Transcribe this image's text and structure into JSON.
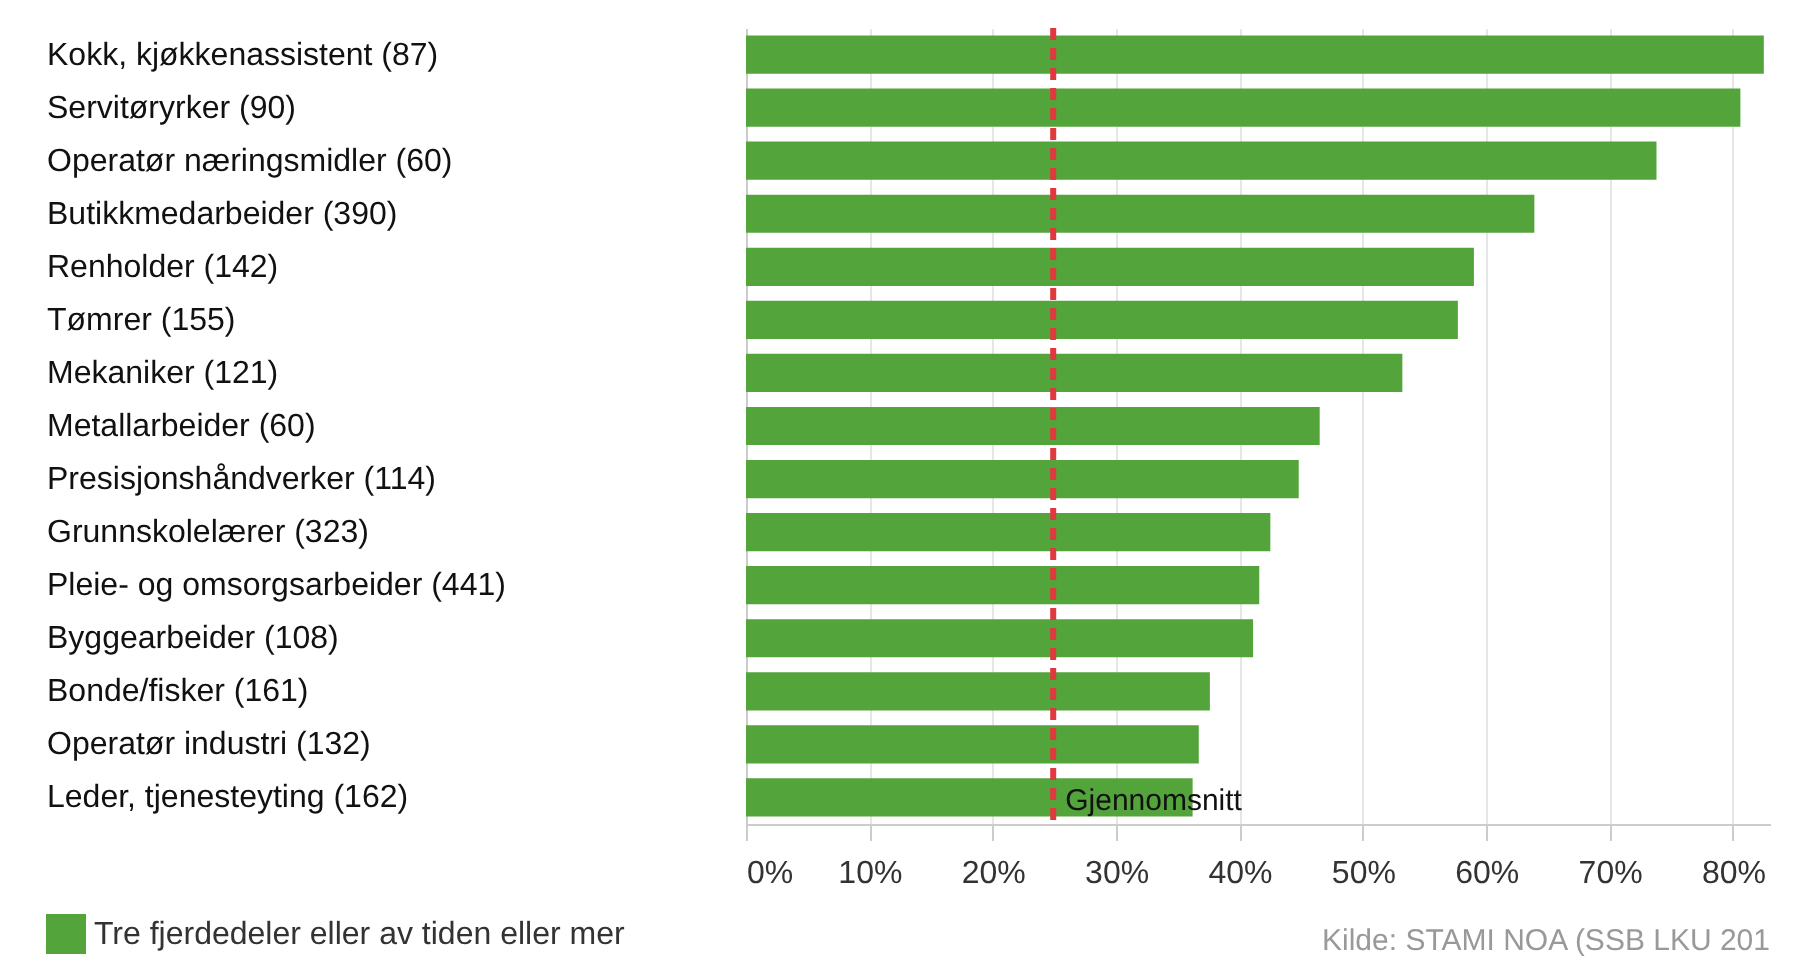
{
  "chart_data": {
    "type": "bar",
    "orientation": "horizontal",
    "categories": [
      "Kokk, kjøkkenassistent (87)",
      "Servitøryrker (90)",
      "Operatør næringsmidler (60)",
      "Butikkmedarbeider (390)",
      "Renholder (142)",
      "Tømrer (155)",
      "Mekaniker (121)",
      "Metallarbeider (60)",
      "Presisjonshåndverker (114)",
      "Grunnskolelærer (323)",
      "Pleie- og omsorgsarbeider (441)",
      "Byggearbeider (108)",
      "Bonde/fisker (161)",
      "Operatør industri (132)",
      "Leder, tjenesteyting (162)"
    ],
    "series": [
      {
        "name": "Tre fjerdedeler eller av tiden eller mer",
        "color": "#53a43b",
        "values": [
          82.5,
          80.6,
          73.8,
          63.9,
          59.0,
          57.7,
          53.2,
          46.5,
          44.8,
          42.5,
          41.6,
          41.1,
          37.6,
          36.7,
          36.2
        ]
      }
    ],
    "xlim": [
      0,
      83
    ],
    "xticks": [
      {
        "value": 0,
        "label": "0%"
      },
      {
        "value": 10,
        "label": "10%"
      },
      {
        "value": 20,
        "label": "20%"
      },
      {
        "value": 30,
        "label": "30%"
      },
      {
        "value": 40,
        "label": "40%"
      },
      {
        "value": 50,
        "label": "50%"
      },
      {
        "value": 60,
        "label": "60%"
      },
      {
        "value": 70,
        "label": "70%"
      },
      {
        "value": 80,
        "label": "80%"
      }
    ],
    "grid": "x",
    "legend": "bottom left",
    "ref_lines": [
      {
        "axis": "x",
        "value": 24.9,
        "label": "Gjennomsnitt",
        "color": "#e0383e",
        "line_style": "dashed"
      }
    ],
    "annotations": [
      "Kilde: STAMI NOA (SSB LKU 201"
    ]
  }
}
